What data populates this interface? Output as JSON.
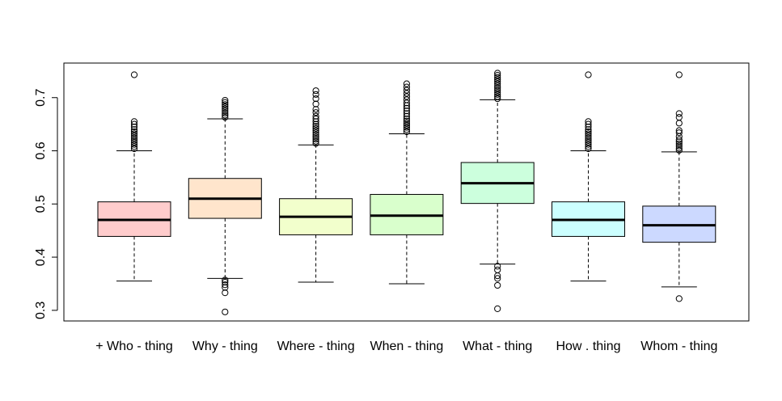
{
  "chart_data": {
    "type": "boxplot",
    "title": "",
    "xlabel": "",
    "ylabel": "",
    "ylim": [
      0.28,
      0.765
    ],
    "yticks": [
      0.3,
      0.4,
      0.5,
      0.6,
      0.7
    ],
    "ytick_labels": [
      "0.3",
      "0.4",
      "0.5",
      "0.6",
      "0.7"
    ],
    "grid": false,
    "legend": "none",
    "categories": [
      "+ Who - thing",
      "Why - thing",
      "Where - thing",
      "When - thing",
      "What - thing",
      "How . thing",
      "Whom - thing"
    ],
    "boxes": [
      {
        "fill": "#ffcccc",
        "whisker_low": 0.355,
        "q1": 0.439,
        "median": 0.47,
        "q3": 0.504,
        "whisker_high": 0.6,
        "outliers": [
          0.604,
          0.608,
          0.612,
          0.616,
          0.62,
          0.624,
          0.628,
          0.632,
          0.636,
          0.64,
          0.645,
          0.65,
          0.655,
          0.743
        ]
      },
      {
        "fill": "#ffe5cc",
        "whisker_low": 0.36,
        "q1": 0.473,
        "median": 0.51,
        "q3": 0.548,
        "whisker_high": 0.66,
        "outliers": [
          0.663,
          0.667,
          0.671,
          0.675,
          0.679,
          0.683,
          0.687,
          0.691,
          0.695,
          0.357,
          0.353,
          0.348,
          0.343,
          0.333,
          0.297
        ]
      },
      {
        "fill": "#f2ffcc",
        "whisker_low": 0.353,
        "q1": 0.442,
        "median": 0.476,
        "q3": 0.51,
        "whisker_high": 0.611,
        "outliers": [
          0.614,
          0.618,
          0.622,
          0.626,
          0.63,
          0.634,
          0.638,
          0.642,
          0.646,
          0.65,
          0.655,
          0.66,
          0.665,
          0.672,
          0.678,
          0.688,
          0.698,
          0.706,
          0.713
        ]
      },
      {
        "fill": "#d9ffcc",
        "whisker_low": 0.35,
        "q1": 0.442,
        "median": 0.478,
        "q3": 0.518,
        "whisker_high": 0.632,
        "outliers": [
          0.636,
          0.64,
          0.644,
          0.648,
          0.652,
          0.656,
          0.66,
          0.665,
          0.67,
          0.675,
          0.68,
          0.685,
          0.69,
          0.696,
          0.702,
          0.708,
          0.714,
          0.72,
          0.726
        ]
      },
      {
        "fill": "#ccffdd",
        "whisker_low": 0.387,
        "q1": 0.501,
        "median": 0.539,
        "q3": 0.578,
        "whisker_high": 0.696,
        "outliers": [
          0.698,
          0.702,
          0.706,
          0.71,
          0.714,
          0.718,
          0.722,
          0.726,
          0.73,
          0.734,
          0.738,
          0.742,
          0.746,
          0.383,
          0.376,
          0.365,
          0.36,
          0.347,
          0.303
        ]
      },
      {
        "fill": "#ccffff",
        "whisker_low": 0.355,
        "q1": 0.439,
        "median": 0.47,
        "q3": 0.504,
        "whisker_high": 0.6,
        "outliers": [
          0.604,
          0.608,
          0.612,
          0.616,
          0.62,
          0.624,
          0.628,
          0.632,
          0.636,
          0.64,
          0.645,
          0.65,
          0.655,
          0.743
        ]
      },
      {
        "fill": "#ccd9ff",
        "whisker_low": 0.344,
        "q1": 0.428,
        "median": 0.46,
        "q3": 0.496,
        "whisker_high": 0.598,
        "outliers": [
          0.601,
          0.605,
          0.609,
          0.613,
          0.617,
          0.621,
          0.627,
          0.634,
          0.638,
          0.652,
          0.663,
          0.67,
          0.743,
          0.322
        ]
      }
    ]
  }
}
